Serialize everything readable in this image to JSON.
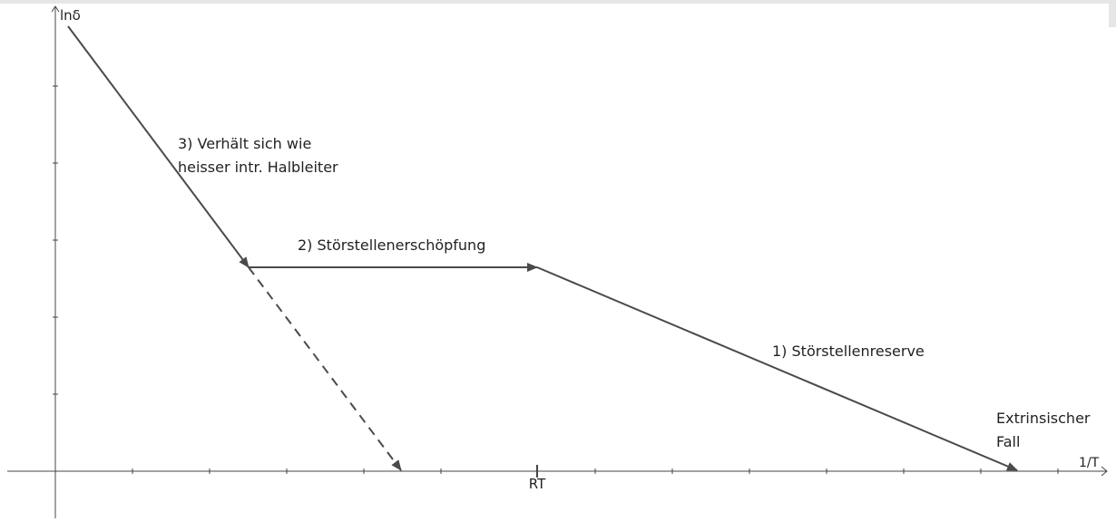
{
  "axes": {
    "y_label": "lnδ",
    "x_label": "1/T",
    "x_tick_label": "RT"
  },
  "annotations": {
    "intrinsic_line1": "3) Verhält sich wie",
    "intrinsic_line2": "heisser intr. Halbleiter",
    "exhaustion": "2) Störstellenerschöpfung",
    "reserve": "1) Störstellenreserve",
    "extrinsic_line1": "Extrinsischer",
    "extrinsic_line2": "Fall"
  },
  "colors": {
    "axis": "#444444",
    "line": "#4a4a4a",
    "text": "#222222"
  }
}
